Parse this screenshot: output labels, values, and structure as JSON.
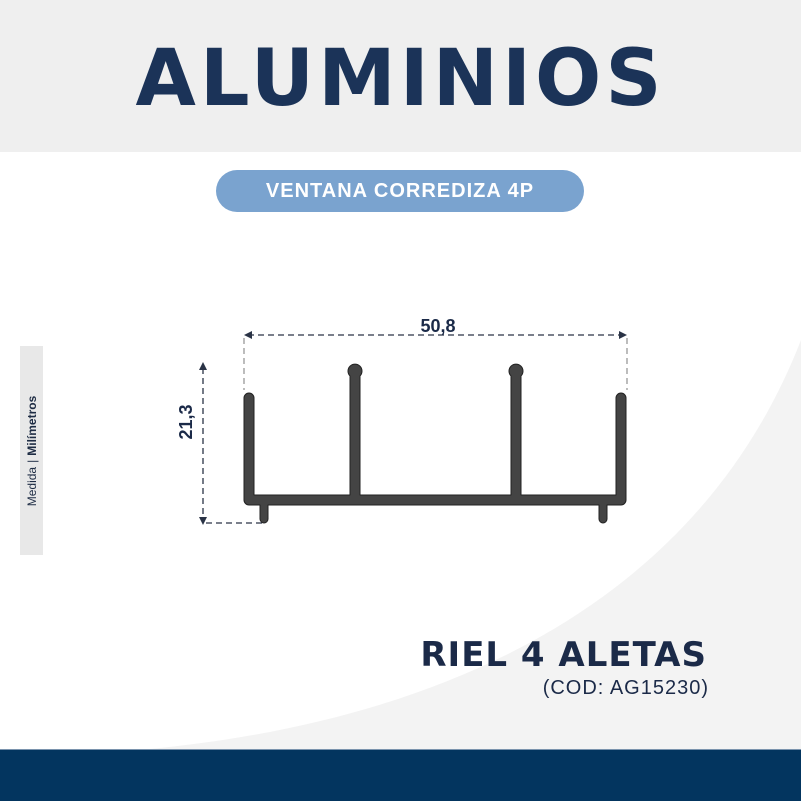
{
  "header": {
    "title": "ALUMINIOS"
  },
  "category": "VENTANA CORREDIZA 4P",
  "units": {
    "label": "Medida",
    "unit": "Milímetros"
  },
  "dimensions": {
    "width": "50,8",
    "height": "21,3"
  },
  "product": {
    "name": "RIEL 4 ALETAS",
    "code": "(COD: AG15230)"
  },
  "colors": {
    "navy": "#1b3358",
    "pill": "#7aa3cf",
    "band": "#03355f",
    "profile": "#444444"
  }
}
